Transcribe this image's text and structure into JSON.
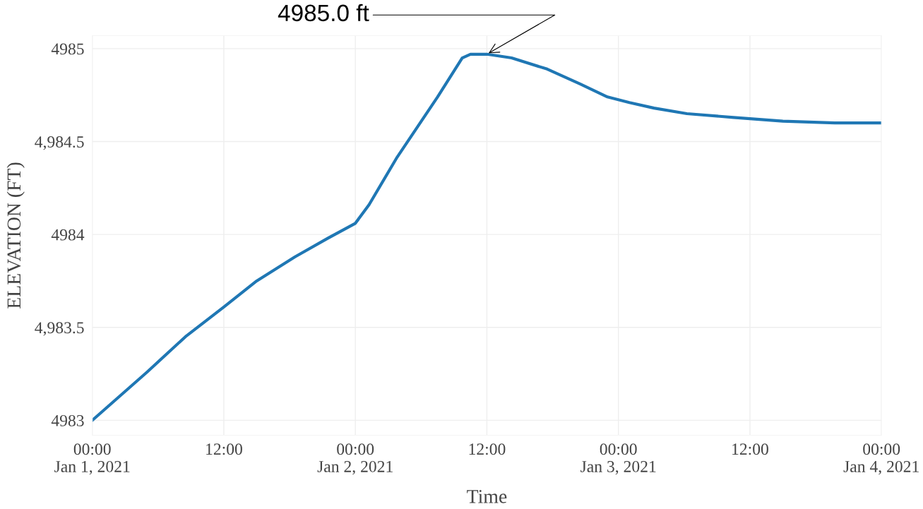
{
  "chart_data": {
    "type": "line",
    "xlabel": "Time",
    "ylabel": "ELEVATION (FT)",
    "x": [
      "2021-01-01T00:00",
      "2021-01-01T05:00",
      "2021-01-01T08:30",
      "2021-01-01T12:00",
      "2021-01-01T15:00",
      "2021-01-01T18:30",
      "2021-01-01T21:30",
      "2021-01-02T00:00",
      "2021-01-02T01:15",
      "2021-01-02T03:45",
      "2021-01-02T07:30",
      "2021-01-02T09:45",
      "2021-01-02T10:30",
      "2021-01-02T12:00",
      "2021-01-02T14:15",
      "2021-01-02T17:30",
      "2021-01-02T20:30",
      "2021-01-02T23:00",
      "2021-01-03T01:00",
      "2021-01-03T03:15",
      "2021-01-03T06:15",
      "2021-01-03T10:30",
      "2021-01-03T15:00",
      "2021-01-03T19:45",
      "2021-01-04T00:00"
    ],
    "series": [
      {
        "color": "#1f77b4",
        "values": [
          4983.0,
          4983.26,
          4983.45,
          4983.61,
          4983.75,
          4983.88,
          4983.98,
          4984.06,
          4984.16,
          4984.41,
          4984.74,
          4984.95,
          4984.97,
          4984.97,
          4984.95,
          4984.89,
          4984.81,
          4984.74,
          4984.71,
          4984.68,
          4984.65,
          4984.63,
          4984.61,
          4984.6,
          4984.6
        ]
      }
    ],
    "xlim": [
      "2021-01-01T00:00",
      "2021-01-04T00:00"
    ],
    "xticks": [
      {
        "value": "2021-01-01T00:00",
        "label": "00:00\nJan 1, 2021"
      },
      {
        "value": "2021-01-01T12:00",
        "label": "12:00"
      },
      {
        "value": "2021-01-02T00:00",
        "label": "00:00\nJan 2, 2021"
      },
      {
        "value": "2021-01-02T12:00",
        "label": "12:00"
      },
      {
        "value": "2021-01-03T00:00",
        "label": "00:00\nJan 3, 2021"
      },
      {
        "value": "2021-01-03T12:00",
        "label": "12:00"
      },
      {
        "value": "2021-01-04T00:00",
        "label": "00:00\nJan 4, 2021"
      }
    ],
    "ylim": [
      4982.92,
      4985.07
    ],
    "yticks": [
      4983,
      {
        "value": 4983.5,
        "label": "4,983.5"
      },
      4984,
      {
        "value": 4984.5,
        "label": "4,984.5"
      },
      4985
    ],
    "annotations": [
      {
        "text": "4985.0 ft",
        "x": "2021-01-02T12:00",
        "y": 4984.97
      }
    ],
    "grid": true,
    "legend": false,
    "marker": "none",
    "line_style": "solid"
  }
}
